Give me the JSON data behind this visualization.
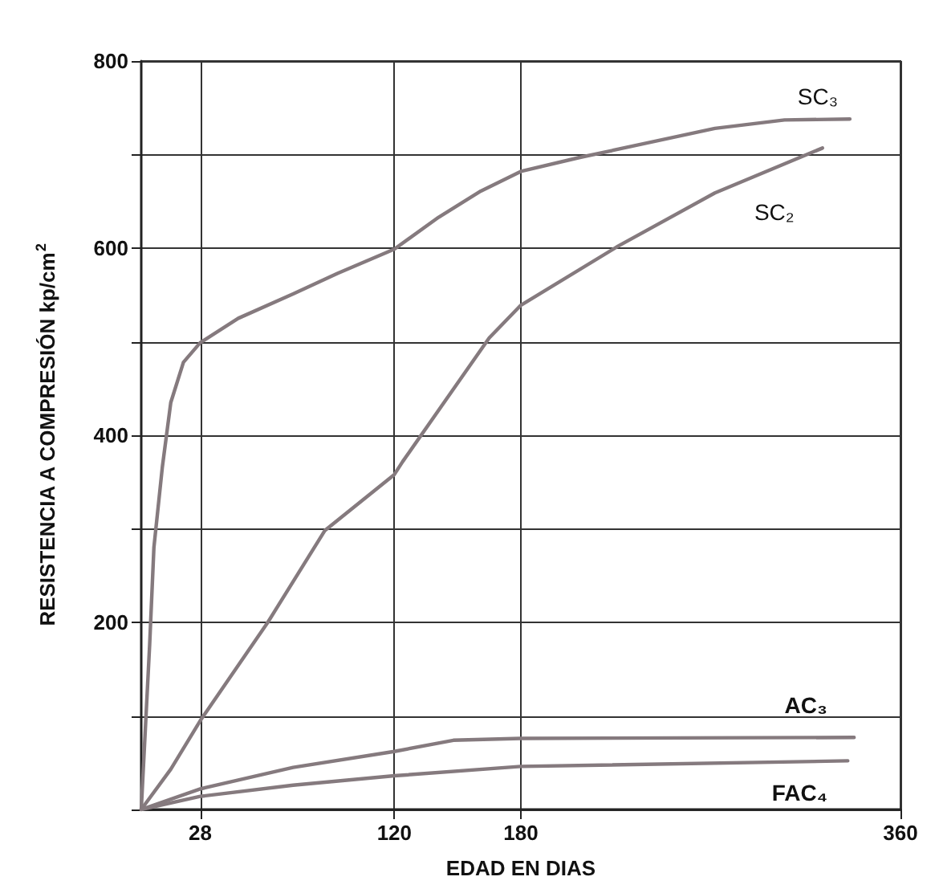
{
  "chart_data": {
    "type": "line",
    "xlabel": "EDAD EN DIAS",
    "ylabel": "RESISTENCIA A COMPRESIÓN kp/cm$^{2}$",
    "xlim": [
      0,
      360
    ],
    "xticks": [
      28,
      120,
      180,
      360
    ],
    "ylim": [
      0,
      800
    ],
    "yticks": [
      {
        "value": 0,
        "label": null
      },
      {
        "value": 100,
        "label": null
      },
      200,
      {
        "value": 300,
        "label": null
      },
      400,
      {
        "value": 500,
        "label": null
      },
      600,
      {
        "value": 700,
        "label": null
      },
      800
    ],
    "grid": true,
    "legend": false,
    "marker": "none",
    "line_style": "solid",
    "series": [
      {
        "name": "SC₃",
        "color": "#857a7e",
        "x": [
          0,
          4,
          6,
          10,
          14,
          20,
          28,
          46,
          72,
          93,
          120,
          141,
          161,
          180,
          208,
          237,
          272,
          305,
          336
        ],
        "values": [
          0,
          177,
          280,
          366,
          435,
          478,
          499,
          525,
          551,
          573,
          599,
          633,
          661,
          682,
          697,
          711,
          728,
          737,
          738
        ]
      },
      {
        "name": "SC₂",
        "color": "#857a7e",
        "x": [
          0,
          14,
          28,
          60,
          87,
          120,
          124,
          165,
          180,
          226,
          272,
          323
        ],
        "values": [
          0,
          43,
          95,
          200,
          298,
          358,
          372,
          504,
          539,
          602,
          659,
          707
        ]
      },
      {
        "name": "AC₃",
        "color": "#857a7e",
        "x": [
          0,
          28,
          72,
          120,
          148,
          180,
          338
        ],
        "values": [
          0,
          22,
          45,
          62,
          74,
          76,
          77
        ]
      },
      {
        "name": "FAC₄",
        "color": "#857a7e",
        "x": [
          0,
          28,
          72,
          120,
          180,
          335
        ],
        "values": [
          0,
          14,
          26,
          36,
          46,
          52
        ]
      }
    ]
  }
}
